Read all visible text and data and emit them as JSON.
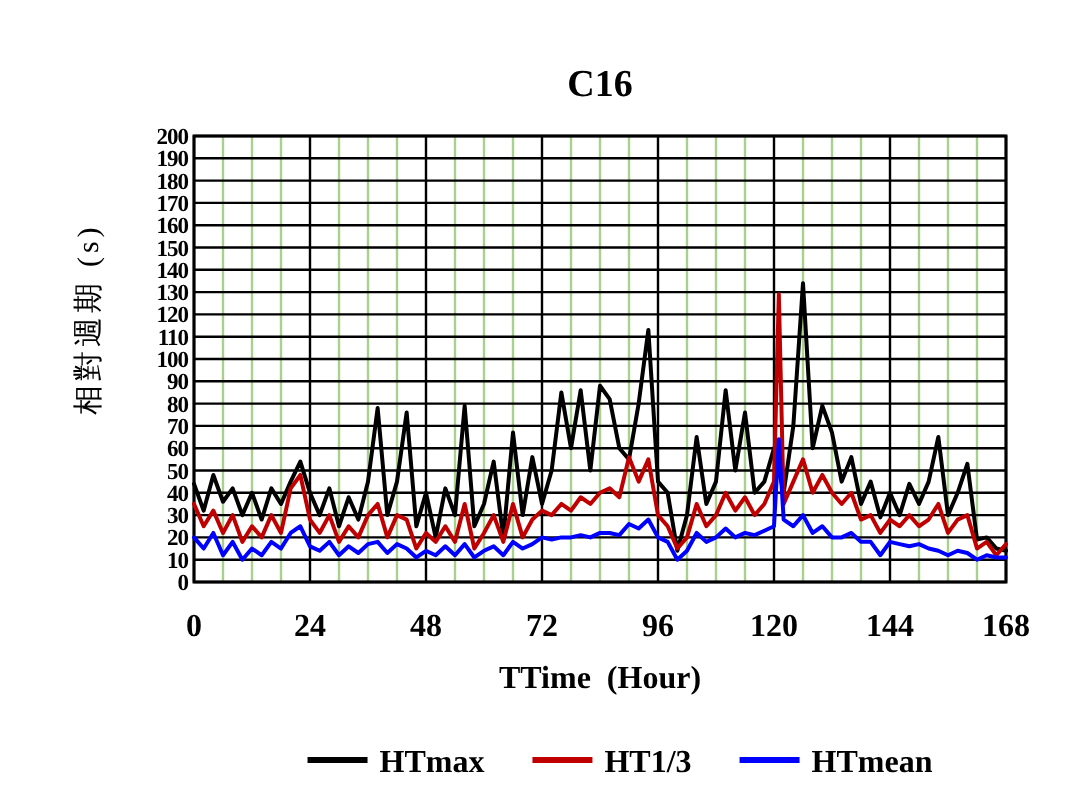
{
  "chart_data": {
    "type": "line",
    "title": "C16",
    "xlabel": "TTime  (Hour)",
    "ylabel": "相對週期 (s)",
    "xlim": [
      0,
      168
    ],
    "xticks": [
      0,
      {
        "value": 6,
        "label": null
      },
      {
        "value": 12,
        "label": null
      },
      {
        "value": 18,
        "label": null
      },
      24,
      {
        "value": 30,
        "label": null
      },
      {
        "value": 36,
        "label": null
      },
      {
        "value": 42,
        "label": null
      },
      48,
      {
        "value": 54,
        "label": null
      },
      {
        "value": 60,
        "label": null
      },
      {
        "value": 66,
        "label": null
      },
      72,
      {
        "value": 78,
        "label": null
      },
      {
        "value": 84,
        "label": null
      },
      {
        "value": 90,
        "label": null
      },
      96,
      {
        "value": 102,
        "label": null
      },
      {
        "value": 108,
        "label": null
      },
      {
        "value": 114,
        "label": null
      },
      120,
      {
        "value": 126,
        "label": null
      },
      {
        "value": 132,
        "label": null
      },
      {
        "value": 138,
        "label": null
      },
      144,
      {
        "value": 150,
        "label": null
      },
      {
        "value": 156,
        "label": null
      },
      {
        "value": 162,
        "label": null
      },
      168
    ],
    "ylim": [
      0,
      200
    ],
    "yticks": [
      0,
      10,
      20,
      30,
      40,
      50,
      60,
      70,
      80,
      90,
      100,
      110,
      120,
      130,
      140,
      150,
      160,
      170,
      180,
      190,
      200
    ],
    "grid": true,
    "legend": "bottom",
    "line_style": "solid",
    "marker": "none",
    "series": [
      {
        "name": "HTmax",
        "color": "#000000",
        "x": [
          0,
          2,
          4,
          6,
          8,
          10,
          12,
          14,
          16,
          18,
          20,
          22,
          24,
          26,
          28,
          30,
          32,
          34,
          36,
          38,
          40,
          42,
          44,
          46,
          48,
          50,
          52,
          54,
          56,
          58,
          60,
          62,
          64,
          66,
          68,
          70,
          72,
          74,
          76,
          78,
          80,
          82,
          84,
          86,
          88,
          90,
          92,
          94,
          96,
          98,
          100,
          102,
          104,
          106,
          108,
          110,
          112,
          114,
          116,
          118,
          120,
          122,
          124,
          126,
          128,
          130,
          132,
          134,
          136,
          138,
          140,
          142,
          144,
          146,
          148,
          150,
          152,
          154,
          156,
          158,
          160,
          162,
          164,
          166,
          168
        ],
        "values": [
          44,
          32,
          48,
          36,
          42,
          30,
          40,
          28,
          42,
          35,
          45,
          54,
          40,
          30,
          42,
          25,
          38,
          28,
          45,
          78,
          30,
          45,
          76,
          25,
          40,
          20,
          42,
          30,
          79,
          25,
          35,
          54,
          20,
          67,
          30,
          56,
          35,
          50,
          85,
          60,
          86,
          50,
          88,
          82,
          60,
          55,
          80,
          113,
          45,
          40,
          14,
          30,
          65,
          35,
          45,
          86,
          50,
          76,
          40,
          45,
          60,
          40,
          70,
          134,
          60,
          79,
          67,
          45,
          56,
          35,
          45,
          29,
          40,
          30,
          44,
          35,
          45,
          65,
          30,
          40,
          53,
          19,
          20,
          15,
          14
        ]
      },
      {
        "name": "HT1/3",
        "color": "#c00000",
        "x": [
          0,
          2,
          4,
          6,
          8,
          10,
          12,
          14,
          16,
          18,
          20,
          22,
          24,
          26,
          28,
          30,
          32,
          34,
          36,
          38,
          40,
          42,
          44,
          46,
          48,
          50,
          52,
          54,
          56,
          58,
          60,
          62,
          64,
          66,
          68,
          70,
          72,
          74,
          76,
          78,
          80,
          82,
          84,
          86,
          88,
          90,
          92,
          94,
          96,
          98,
          100,
          102,
          104,
          106,
          108,
          110,
          112,
          114,
          116,
          118,
          120,
          121,
          122,
          124,
          126,
          128,
          130,
          132,
          134,
          136,
          138,
          140,
          142,
          144,
          146,
          148,
          150,
          152,
          154,
          156,
          158,
          160,
          162,
          164,
          166,
          168
        ],
        "values": [
          35,
          25,
          32,
          22,
          30,
          18,
          25,
          20,
          30,
          22,
          42,
          48,
          28,
          22,
          30,
          18,
          25,
          20,
          30,
          35,
          20,
          30,
          28,
          15,
          22,
          18,
          25,
          18,
          35,
          15,
          22,
          30,
          18,
          35,
          20,
          28,
          32,
          30,
          35,
          32,
          38,
          35,
          40,
          42,
          38,
          56,
          45,
          55,
          30,
          25,
          15,
          20,
          35,
          25,
          30,
          40,
          32,
          38,
          30,
          35,
          45,
          129,
          35,
          45,
          55,
          40,
          48,
          40,
          35,
          40,
          28,
          30,
          22,
          28,
          25,
          30,
          25,
          28,
          35,
          22,
          28,
          30,
          15,
          18,
          12,
          17
        ]
      },
      {
        "name": "HTmean",
        "color": "#0000ff",
        "x": [
          0,
          2,
          4,
          6,
          8,
          10,
          12,
          14,
          16,
          18,
          20,
          22,
          24,
          26,
          28,
          30,
          32,
          34,
          36,
          38,
          40,
          42,
          44,
          46,
          48,
          50,
          52,
          54,
          56,
          58,
          60,
          62,
          64,
          66,
          68,
          70,
          72,
          74,
          76,
          78,
          80,
          82,
          84,
          86,
          88,
          90,
          92,
          94,
          96,
          98,
          100,
          102,
          104,
          106,
          108,
          110,
          112,
          114,
          116,
          118,
          120,
          121,
          122,
          124,
          126,
          128,
          130,
          132,
          134,
          136,
          138,
          140,
          142,
          144,
          146,
          148,
          150,
          152,
          154,
          156,
          158,
          160,
          162,
          164,
          166,
          168
        ],
        "values": [
          20,
          15,
          22,
          12,
          18,
          10,
          15,
          12,
          18,
          15,
          22,
          25,
          16,
          14,
          18,
          12,
          16,
          13,
          17,
          18,
          13,
          17,
          15,
          11,
          14,
          12,
          16,
          12,
          17,
          11,
          14,
          16,
          12,
          18,
          15,
          17,
          20,
          19,
          20,
          20,
          21,
          20,
          22,
          22,
          21,
          26,
          24,
          28,
          20,
          18,
          10,
          14,
          22,
          18,
          20,
          24,
          20,
          22,
          21,
          23,
          25,
          64,
          28,
          25,
          30,
          22,
          25,
          20,
          20,
          22,
          18,
          18,
          12,
          18,
          17,
          16,
          17,
          15,
          14,
          12,
          14,
          13,
          10,
          12,
          11,
          11
        ]
      }
    ]
  }
}
